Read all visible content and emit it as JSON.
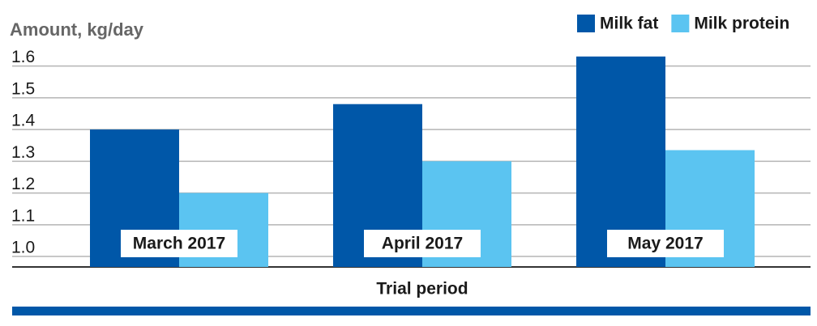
{
  "chart_data": {
    "type": "bar",
    "y_axis_label": "Amount, kg/day",
    "x_axis_label": "Trial period",
    "categories": [
      "March 2017",
      "April 2017",
      "May 2017"
    ],
    "series": [
      {
        "name": "Milk fat",
        "color": "#0057a8",
        "values": [
          1.4,
          1.48,
          1.63
        ]
      },
      {
        "name": "Milk protein",
        "color": "#5bc4f1",
        "values": [
          1.2,
          1.3,
          1.335
        ]
      }
    ],
    "ylim": [
      0.967,
      1.65
    ],
    "yticks": [
      {
        "value": 1,
        "label": "1.0"
      },
      1.1,
      1.2,
      1.3,
      1.4,
      1.5,
      1.6
    ],
    "grid": true
  }
}
